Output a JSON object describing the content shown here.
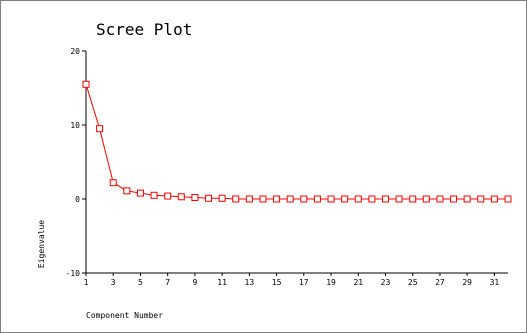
{
  "chart_data": {
    "type": "line",
    "title": "Scree Plot",
    "xlabel": "Component Number",
    "ylabel": "Eigenvalue",
    "x": [
      1,
      2,
      3,
      4,
      5,
      6,
      7,
      8,
      9,
      10,
      11,
      12,
      13,
      14,
      15,
      16,
      17,
      18,
      19,
      20,
      21,
      22,
      23,
      24,
      25,
      26,
      27,
      28,
      29,
      30,
      31,
      32
    ],
    "series": [
      {
        "values": [
          15.5,
          9.5,
          2.2,
          1.1,
          0.8,
          0.5,
          0.4,
          0.3,
          0.2,
          0.1,
          0.1,
          0.0,
          0.0,
          0.0,
          0.0,
          0.0,
          0.0,
          0.0,
          0.0,
          0.0,
          0.0,
          0.0,
          0.0,
          0.0,
          0.0,
          0.0,
          0.0,
          0.0,
          0.0,
          0.0,
          0.0,
          0.0
        ]
      }
    ],
    "xticks": [
      1,
      3,
      5,
      7,
      9,
      11,
      13,
      15,
      17,
      19,
      21,
      23,
      25,
      27,
      29,
      31
    ],
    "yticks": [
      -10,
      0,
      10,
      20
    ],
    "xlim": [
      1,
      32
    ],
    "ylim": [
      -10,
      20
    ],
    "grid": false,
    "legend": "none",
    "colors": {
      "line": "#ff0000",
      "marker": "#ff0000",
      "axis": "#000000"
    }
  }
}
